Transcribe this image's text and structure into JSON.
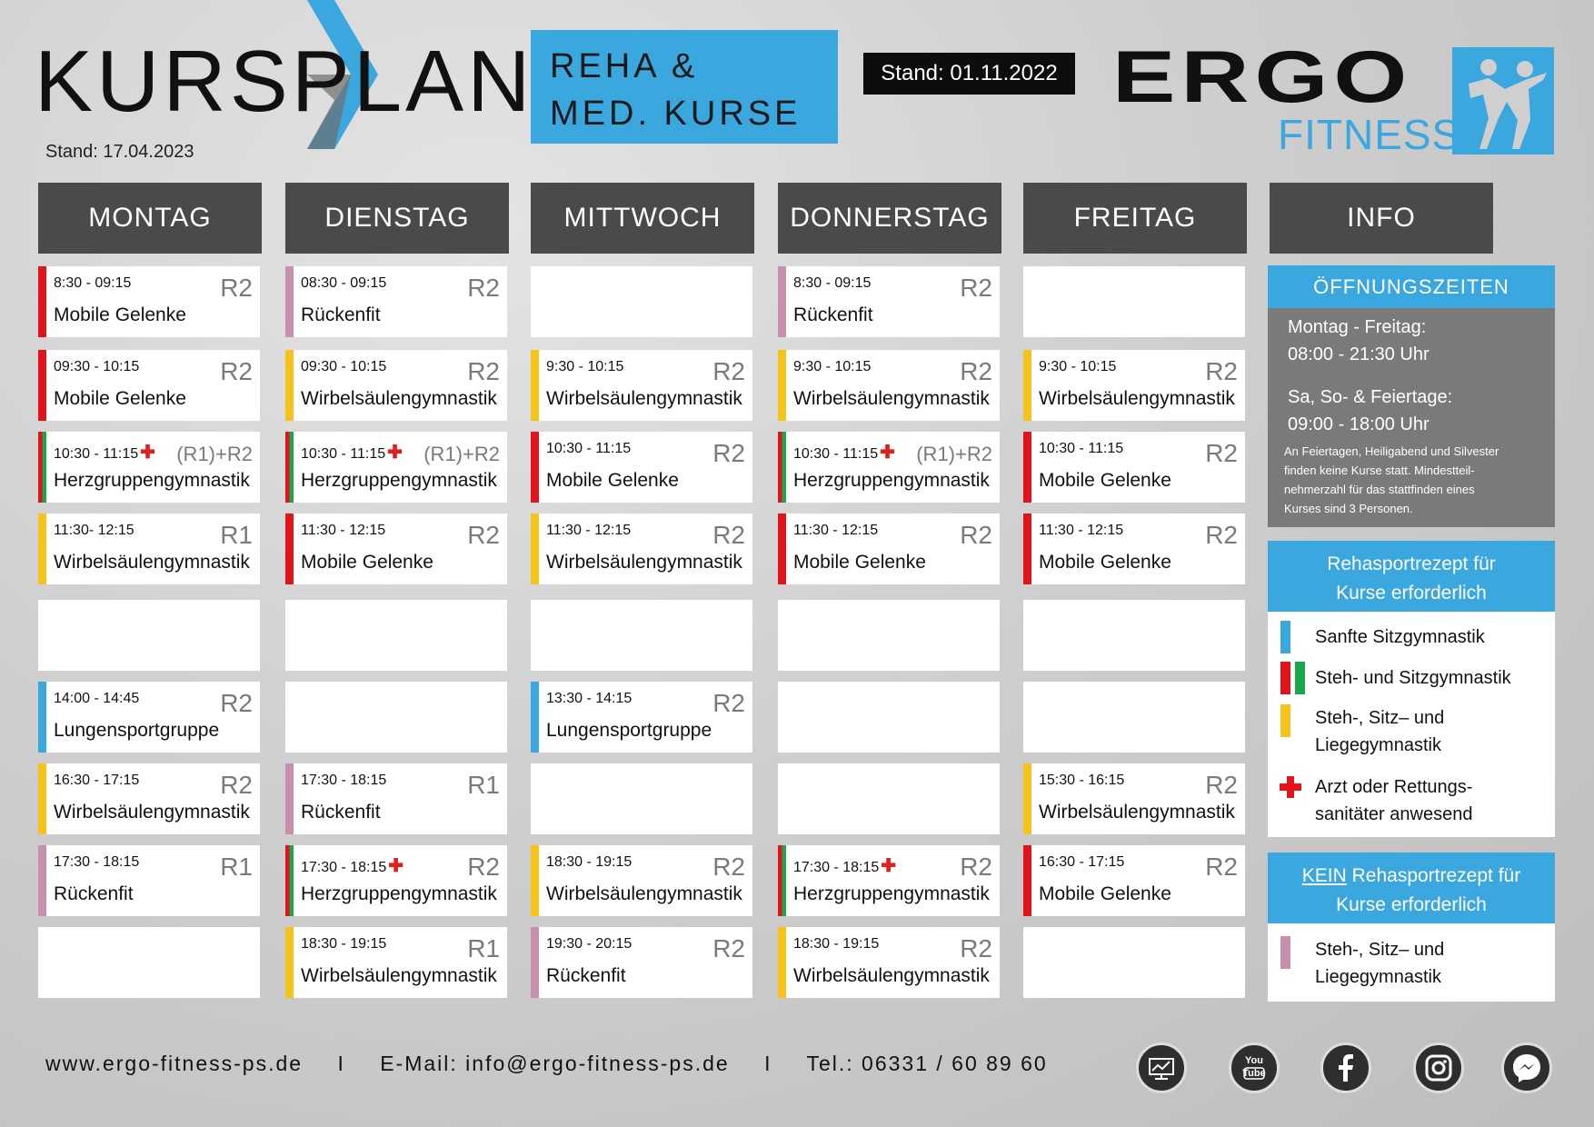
{
  "header": {
    "title": "KURSPLAN",
    "subtitle_line1": "REHA &",
    "subtitle_line2": "MED. KURSE",
    "stand_small": "Stand: 17.04.2023",
    "stand_badge": "Stand: 01.11.2022",
    "logo_ergo": "ERGO",
    "logo_fitness": "FITNESS"
  },
  "colors": {
    "red": "#e3131b",
    "green": "#1aa64a",
    "yellow": "#f6c31b",
    "blue": "#3aa7df",
    "mauve": "#c98fae",
    "header_gray": "#4a4a4a"
  },
  "days": [
    "MONTAG",
    "DIENSTAG",
    "MITTWOCH",
    "DONNERSTAG",
    "FREITAG",
    "INFO"
  ],
  "schedule": {
    "montag": [
      {
        "time": "8:30 - 09:15",
        "room": "R2",
        "name": "Mobile Gelenke",
        "color": "red"
      },
      {
        "time": "09:30 - 10:15",
        "room": "R2",
        "name": "Mobile Gelenke",
        "color": "red"
      },
      {
        "time": "10:30 - 11:15",
        "cross": true,
        "room_pre": "(R1)",
        "room": "+R2",
        "name": "Herzgruppengymnastik",
        "color": "red_green"
      },
      {
        "time": "11:30- 12:15",
        "room": "R1",
        "name": "Wirbelsäulengymnastik",
        "color": "yellow"
      },
      null,
      {
        "time": "14:00 - 14:45",
        "room": "R2",
        "name": "Lungensportgruppe",
        "color": "blue"
      },
      {
        "time": "16:30 - 17:15",
        "room": "R2",
        "name": "Wirbelsäulengymnastik",
        "color": "yellow"
      },
      {
        "time": "17:30 - 18:15",
        "room": "R1",
        "name": "Rückenfit",
        "color": "mauve"
      },
      null
    ],
    "dienstag": [
      {
        "time": "08:30 - 09:15",
        "room": "R2",
        "name": "Rückenfit",
        "color": "mauve"
      },
      {
        "time": "09:30 - 10:15",
        "room": "R2",
        "name": "Wirbelsäulengymnastik",
        "color": "yellow"
      },
      {
        "time": "10:30 - 11:15",
        "cross": true,
        "room_pre": "(R1)",
        "room": "+R2",
        "name": "Herzgruppengymnastik",
        "color": "red_green"
      },
      {
        "time": "11:30 - 12:15",
        "room": "R2",
        "name": "Mobile Gelenke",
        "color": "red"
      },
      null,
      null,
      {
        "time": "17:30 - 18:15",
        "room": "R1",
        "name": "Rückenfit",
        "color": "mauve"
      },
      {
        "time": "17:30 - 18:15",
        "cross": true,
        "room": "R2",
        "name": "Herzgruppengymnastik",
        "color": "red_green"
      },
      {
        "time": "18:30 - 19:15",
        "room": "R1",
        "name": "Wirbelsäulengymnastik",
        "color": "yellow"
      }
    ],
    "mittwoch": [
      null,
      {
        "time": "9:30 - 10:15",
        "room": "R2",
        "name": "Wirbelsäulengymnastik",
        "color": "yellow"
      },
      {
        "time": "10:30 - 11:15",
        "room": "R2",
        "name": "Mobile Gelenke",
        "color": "red"
      },
      {
        "time": "11:30 - 12:15",
        "room": "R2",
        "name": "Wirbelsäulengymnastik",
        "color": "yellow"
      },
      null,
      {
        "time": "13:30 - 14:15",
        "room": "R2",
        "name": "Lungensportgruppe",
        "color": "blue"
      },
      null,
      {
        "time": "18:30 - 19:15",
        "room": "R2",
        "name": "Wirbelsäulengymnastik",
        "color": "yellow"
      },
      {
        "time": "19:30 - 20:15",
        "room": "R2",
        "name": "Rückenfit",
        "color": "mauve"
      }
    ],
    "donnerstag": [
      {
        "time": "8:30 - 09:15",
        "room": "R2",
        "name": "Rückenfit",
        "color": "mauve"
      },
      {
        "time": "9:30 - 10:15",
        "room": "R2",
        "name": "Wirbelsäulengymnastik",
        "color": "yellow"
      },
      {
        "time": "10:30 - 11:15",
        "cross": true,
        "room_pre": "(R1)",
        "room": "+R2",
        "name": "Herzgruppengymnastik",
        "color": "red_green"
      },
      {
        "time": "11:30 - 12:15",
        "room": "R2",
        "name": "Mobile Gelenke",
        "color": "red"
      },
      null,
      null,
      null,
      {
        "time": "17:30 - 18:15",
        "cross": true,
        "room": "R2",
        "name": "Herzgruppengymnastik",
        "color": "red_green"
      },
      {
        "time": "18:30 - 19:15",
        "room": "R2",
        "name": "Wirbelsäulengymnastik",
        "color": "yellow"
      }
    ],
    "freitag": [
      null,
      {
        "time": "9:30 - 10:15",
        "room": "R2",
        "name": "Wirbelsäulengymnastik",
        "color": "yellow"
      },
      {
        "time": "10:30 - 11:15",
        "room": "R2",
        "name": "Mobile Gelenke",
        "color": "red"
      },
      {
        "time": "11:30 - 12:15",
        "room": "R2",
        "name": "Mobile Gelenke",
        "color": "red"
      },
      null,
      null,
      {
        "time": "15:30 - 16:15",
        "room": "R2",
        "name": "Wirbelsäulengymnastik",
        "color": "yellow"
      },
      {
        "time": "16:30 - 17:15",
        "room": "R2",
        "name": "Mobile Gelenke",
        "color": "red"
      },
      null
    ]
  },
  "info": {
    "oeffnungszeiten_title": "ÖFFNUNGSZEITEN",
    "mo_fr_label": "Montag - Freitag:",
    "mo_fr_hours": "08:00 - 21:30 Uhr",
    "we_label": "Sa, So- & Feiertage:",
    "we_hours": "09:00 - 18:00 Uhr",
    "note_line1": "An Feiertagen, Heiligabend und Silvester",
    "note_line2": "finden keine Kurse statt. Mindestteil-",
    "note_line3": "nehmerzahl für das stattfinden eines",
    "note_line4": "Kurses sind 3 Personen.",
    "rezept_title_line1": "Rehasportrezept für",
    "rezept_title_line2": "Kurse erforderlich",
    "legend": [
      {
        "color": "blue",
        "line1": "Sanfte Sitzgymnastik",
        "line2": ""
      },
      {
        "color": "red_green",
        "line1": "Steh- und Sitzgymnastik",
        "line2": ""
      },
      {
        "color": "yellow",
        "line1": "Steh-, Sitz– und",
        "line2": "Liegegymnastik"
      },
      {
        "color": "cross",
        "line1": "Arzt oder Rettungs-",
        "line2": "sanitäter anwesend"
      }
    ],
    "kein_word": "KEIN",
    "kein_title_rest": " Rehasportrezept für",
    "kein_title_line2": "Kurse erforderlich",
    "kein_legend": [
      {
        "color": "mauve",
        "line1": "Steh-, Sitz– und",
        "line2": "Liegegymnastik"
      }
    ]
  },
  "footer": {
    "website": "www.ergo-fitness-ps.de",
    "sep": "I",
    "email": "E-Mail: info@ergo-fitness-ps.de",
    "phone": "Tel.: 06331 / 60 89 60"
  },
  "social_icons": [
    "monitor-chart-icon",
    "youtube-icon",
    "facebook-icon",
    "instagram-icon",
    "messenger-icon"
  ],
  "social_labels": {
    "youtube": "You Tube"
  }
}
